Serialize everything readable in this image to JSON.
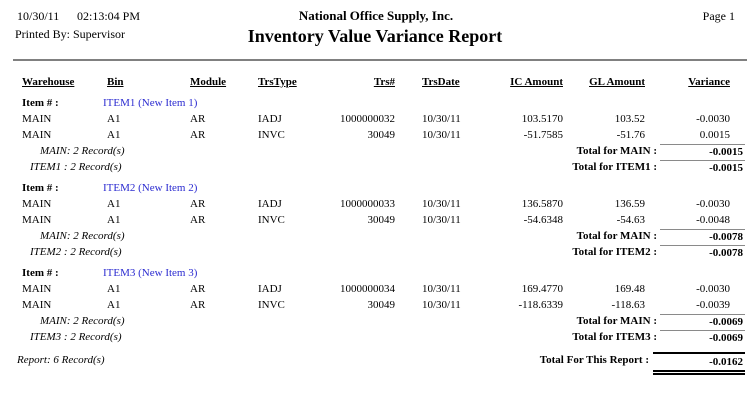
{
  "header": {
    "date": "10/30/11",
    "time": "02:13:04 PM",
    "company": "National Office Supply, Inc.",
    "page": "Page 1",
    "printed_by": "Printed By: Supervisor",
    "title": "Inventory Value Variance Report"
  },
  "columns": {
    "warehouse": "Warehouse",
    "bin": "Bin",
    "module": "Module",
    "trstype": "TrsType",
    "trsnum": "Trs#",
    "trsdate": "TrsDate",
    "ic_amount": "IC Amount",
    "gl_amount": "GL Amount",
    "variance": "Variance"
  },
  "item_label": "Item # :",
  "groups": [
    {
      "item": "ITEM1 (New Item 1)",
      "rows": [
        {
          "warehouse": "MAIN",
          "bin": "A1",
          "module": "AR",
          "trstype": "IADJ",
          "trsnum": "1000000032",
          "trsdate": "10/30/11",
          "ic": "103.5170",
          "gl": "103.52",
          "variance": "-0.0030"
        },
        {
          "warehouse": "MAIN",
          "bin": "A1",
          "module": "AR",
          "trstype": "INVC",
          "trsnum": "30049",
          "trsdate": "10/30/11",
          "ic": "-51.7585",
          "gl": "-51.76",
          "variance": "0.0015"
        }
      ],
      "warehouse_count": "MAIN: 2 Record(s)",
      "warehouse_total_label": "Total for MAIN :",
      "warehouse_total": "-0.0015",
      "item_count": "ITEM1 : 2 Record(s)",
      "item_total_label": "Total for ITEM1 :",
      "item_total": "-0.0015"
    },
    {
      "item": "ITEM2 (New Item 2)",
      "rows": [
        {
          "warehouse": "MAIN",
          "bin": "A1",
          "module": "AR",
          "trstype": "IADJ",
          "trsnum": "1000000033",
          "trsdate": "10/30/11",
          "ic": "136.5870",
          "gl": "136.59",
          "variance": "-0.0030"
        },
        {
          "warehouse": "MAIN",
          "bin": "A1",
          "module": "AR",
          "trstype": "INVC",
          "trsnum": "30049",
          "trsdate": "10/30/11",
          "ic": "-54.6348",
          "gl": "-54.63",
          "variance": "-0.0048"
        }
      ],
      "warehouse_count": "MAIN: 2 Record(s)",
      "warehouse_total_label": "Total for MAIN :",
      "warehouse_total": "-0.0078",
      "item_count": "ITEM2 : 2 Record(s)",
      "item_total_label": "Total for ITEM2 :",
      "item_total": "-0.0078"
    },
    {
      "item": "ITEM3 (New Item 3)",
      "rows": [
        {
          "warehouse": "MAIN",
          "bin": "A1",
          "module": "AR",
          "trstype": "IADJ",
          "trsnum": "1000000034",
          "trsdate": "10/30/11",
          "ic": "169.4770",
          "gl": "169.48",
          "variance": "-0.0030"
        },
        {
          "warehouse": "MAIN",
          "bin": "A1",
          "module": "AR",
          "trstype": "INVC",
          "trsnum": "30049",
          "trsdate": "10/30/11",
          "ic": "-118.6339",
          "gl": "-118.63",
          "variance": "-0.0039"
        }
      ],
      "warehouse_count": "MAIN: 2 Record(s)",
      "warehouse_total_label": "Total for MAIN :",
      "warehouse_total": "-0.0069",
      "item_count": "ITEM3 : 2 Record(s)",
      "item_total_label": "Total for ITEM3 :",
      "item_total": "-0.0069"
    }
  ],
  "footer": {
    "report_count": "Report: 6 Record(s)",
    "report_total_label": "Total For This Report :",
    "report_total": "-0.0162"
  },
  "colors": {
    "item_link": "#2b2bd0",
    "separator": "#808080"
  }
}
